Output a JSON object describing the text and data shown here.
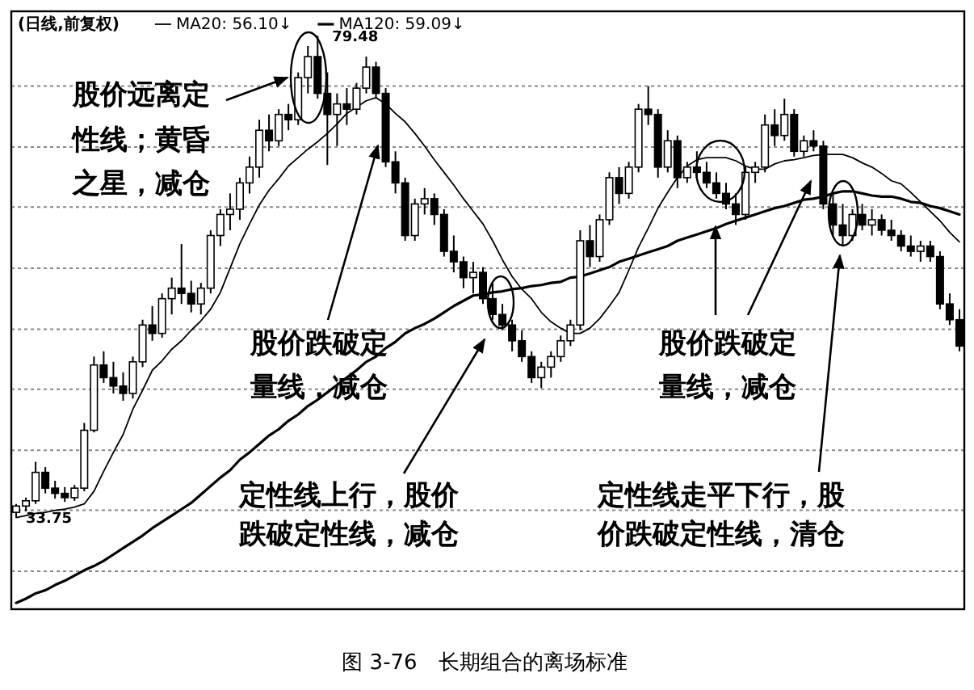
{
  "chart_data": {
    "type": "candlestick",
    "title": "图 3-76　长期组合的离场标准",
    "subtitle": "(日线,前复权)",
    "categories": [
      null,
      null,
      null,
      null,
      null,
      null,
      null,
      null,
      null,
      null,
      null,
      null,
      null,
      null,
      null,
      null,
      null,
      null,
      null,
      null,
      null,
      null,
      null,
      null,
      null,
      null,
      null,
      null,
      null,
      null,
      null,
      null,
      null,
      null,
      null,
      null,
      null,
      null,
      null,
      null,
      null,
      null,
      null,
      null,
      null,
      null,
      null,
      null,
      null,
      null,
      null,
      null,
      null,
      null,
      null,
      null,
      null,
      null,
      null,
      null,
      null,
      null,
      null,
      null,
      null,
      null,
      null,
      null,
      null,
      null,
      null,
      null,
      null,
      null,
      null,
      null,
      null,
      null,
      null,
      null,
      null,
      null,
      null,
      null,
      null,
      null,
      null,
      null,
      null,
      null,
      null,
      null,
      null,
      null,
      null,
      null,
      null,
      null
    ],
    "ohlc": [
      [
        34.2,
        35.0,
        33.75,
        34.8
      ],
      [
        34.8,
        35.6,
        34.3,
        35.3
      ],
      [
        35.3,
        39.0,
        35.0,
        38.0
      ],
      [
        38.0,
        38.5,
        36.0,
        36.5
      ],
      [
        36.5,
        37.2,
        35.5,
        36.0
      ],
      [
        36.0,
        36.6,
        35.2,
        35.6
      ],
      [
        35.6,
        36.8,
        35.3,
        36.5
      ],
      [
        36.5,
        42.7,
        36.2,
        42.0
      ],
      [
        42.0,
        49.0,
        41.8,
        48.2
      ],
      [
        48.2,
        49.5,
        46.5,
        47.0
      ],
      [
        47.0,
        48.5,
        45.5,
        46.2
      ],
      [
        46.2,
        47.5,
        44.8,
        45.5
      ],
      [
        45.5,
        49.0,
        45.0,
        48.5
      ],
      [
        48.5,
        52.5,
        48.0,
        52.0
      ],
      [
        52.0,
        53.8,
        50.5,
        51.2
      ],
      [
        51.2,
        55.0,
        50.8,
        54.5
      ],
      [
        54.5,
        56.5,
        53.0,
        55.5
      ],
      [
        55.5,
        59.7,
        54.0,
        55.0
      ],
      [
        55.0,
        56.2,
        53.2,
        54.0
      ],
      [
        54.0,
        56.0,
        53.0,
        55.5
      ],
      [
        55.5,
        61.0,
        55.0,
        60.5
      ],
      [
        60.5,
        63.0,
        59.5,
        62.5
      ],
      [
        62.5,
        64.5,
        61.0,
        63.0
      ],
      [
        63.0,
        66.0,
        62.0,
        65.5
      ],
      [
        65.5,
        68.0,
        64.5,
        67.0
      ],
      [
        67.0,
        71.5,
        66.0,
        70.5
      ],
      [
        70.5,
        72.0,
        68.5,
        69.5
      ],
      [
        69.5,
        72.5,
        69.0,
        72.0
      ],
      [
        72.0,
        73.0,
        70.5,
        71.5
      ],
      [
        71.5,
        76.0,
        71.0,
        75.5
      ],
      [
        75.5,
        78.5,
        74.0,
        77.5
      ],
      [
        77.5,
        79.48,
        73.5,
        74.0
      ],
      [
        74.0,
        76.0,
        67.2,
        72.0
      ],
      [
        72.0,
        74.0,
        69.0,
        73.0
      ],
      [
        73.0,
        74.5,
        71.0,
        72.5
      ],
      [
        72.5,
        75.0,
        72.0,
        74.5
      ],
      [
        74.5,
        77.5,
        74.0,
        76.5
      ],
      [
        76.5,
        77.0,
        73.5,
        74.0
      ],
      [
        74.0,
        74.5,
        67.0,
        67.5
      ],
      [
        67.5,
        68.5,
        64.5,
        65.5
      ],
      [
        65.5,
        66.0,
        60.0,
        60.5
      ],
      [
        60.5,
        64.0,
        60.0,
        63.5
      ],
      [
        63.5,
        65.0,
        62.5,
        64.0
      ],
      [
        64.0,
        64.5,
        61.5,
        62.5
      ],
      [
        62.5,
        63.0,
        58.5,
        59.0
      ],
      [
        59.0,
        60.5,
        57.0,
        58.0
      ],
      [
        58.0,
        58.5,
        55.5,
        56.5
      ],
      [
        56.5,
        58.0,
        55.0,
        57.0
      ],
      [
        57.0,
        57.5,
        54.0,
        54.5
      ],
      [
        54.5,
        56.0,
        52.5,
        53.0
      ],
      [
        53.0,
        54.0,
        51.5,
        52.0
      ],
      [
        52.0,
        52.5,
        49.5,
        50.5
      ],
      [
        50.5,
        51.5,
        48.5,
        49.0
      ],
      [
        49.0,
        49.5,
        46.5,
        47.0
      ],
      [
        47.0,
        48.5,
        46.0,
        48.0
      ],
      [
        48.0,
        49.5,
        47.0,
        49.0
      ],
      [
        49.0,
        51.0,
        48.5,
        50.5
      ],
      [
        50.5,
        52.5,
        50.0,
        52.0
      ],
      [
        52.0,
        61.0,
        51.5,
        60.0
      ],
      [
        60.0,
        61.5,
        57.5,
        58.5
      ],
      [
        58.5,
        62.5,
        58.0,
        62.0
      ],
      [
        62.0,
        66.5,
        61.5,
        66.0
      ],
      [
        66.0,
        67.0,
        63.5,
        64.5
      ],
      [
        64.5,
        67.5,
        64.0,
        67.0
      ],
      [
        67.0,
        73.0,
        66.5,
        72.5
      ],
      [
        72.5,
        74.7,
        71.0,
        72.0
      ],
      [
        72.0,
        72.5,
        66.0,
        67.0
      ],
      [
        67.0,
        70.5,
        66.5,
        69.5
      ],
      [
        69.5,
        70.0,
        65.0,
        66.0
      ],
      [
        66.0,
        67.5,
        65.5,
        67.0
      ],
      [
        67.0,
        68.5,
        66.0,
        66.5
      ],
      [
        66.5,
        67.5,
        65.0,
        65.5
      ],
      [
        65.5,
        66.5,
        64.0,
        64.5
      ],
      [
        64.5,
        65.5,
        63.0,
        63.5
      ],
      [
        63.5,
        64.5,
        61.5,
        62.5
      ],
      [
        62.5,
        67.0,
        62.0,
        66.5
      ],
      [
        66.5,
        67.5,
        65.5,
        67.0
      ],
      [
        67.0,
        72.0,
        66.5,
        71.0
      ],
      [
        71.0,
        72.5,
        69.0,
        70.0
      ],
      [
        70.0,
        73.5,
        69.5,
        72.0
      ],
      [
        72.0,
        72.5,
        68.0,
        68.5
      ],
      [
        68.5,
        70.0,
        68.0,
        69.5
      ],
      [
        69.5,
        70.5,
        68.5,
        69.0
      ],
      [
        69.0,
        69.5,
        63.0,
        63.5
      ],
      [
        63.5,
        64.5,
        60.5,
        61.5
      ],
      [
        61.5,
        63.5,
        59.5,
        60.5
      ],
      [
        60.5,
        63.0,
        60.0,
        62.5
      ],
      [
        62.5,
        63.5,
        61.0,
        61.5
      ],
      [
        61.5,
        63.0,
        60.5,
        62.0
      ],
      [
        62.0,
        62.5,
        60.5,
        61.0
      ],
      [
        61.0,
        62.0,
        60.0,
        60.5
      ],
      [
        60.5,
        61.0,
        59.0,
        59.5
      ],
      [
        59.5,
        60.5,
        58.5,
        59.0
      ],
      [
        59.0,
        60.0,
        58.0,
        59.5
      ],
      [
        59.5,
        60.0,
        58.0,
        58.5
      ],
      [
        58.5,
        59.0,
        53.5,
        54.0
      ],
      [
        54.0,
        55.0,
        52.0,
        52.5
      ],
      [
        52.5,
        53.5,
        49.5,
        50.0
      ]
    ],
    "series": [
      {
        "name": "MA20: 56.10↓",
        "type": "line",
        "color": "#000000",
        "values": [
          33.7,
          33.9,
          34.1,
          34.2,
          34.4,
          34.5,
          34.7,
          35.0,
          36.2,
          38.1,
          39.9,
          41.6,
          44.0,
          45.8,
          47.7,
          48.6,
          49.7,
          50.5,
          51.5,
          52.4,
          53.5,
          55.1,
          57.4,
          59.7,
          61.6,
          63.4,
          64.8,
          65.9,
          67.1,
          67.9,
          68.7,
          69.4,
          70.2,
          71.1,
          72.1,
          72.7,
          73.3,
          73.6,
          73.0,
          72.1,
          71.3,
          70.2,
          69.0,
          67.7,
          66.5,
          65.3,
          64.0,
          62.8,
          61.6,
          60.0,
          58.2,
          56.6,
          55.4,
          54.5,
          53.2,
          52.3,
          51.7,
          51.2,
          51.2,
          51.7,
          52.6,
          53.8,
          55.1,
          57.2,
          59.4,
          61.2,
          63.1,
          64.6,
          66.0,
          67.1,
          67.7,
          67.9,
          67.9,
          67.9,
          67.6,
          67.1,
          66.8,
          66.8,
          67.3,
          67.6,
          67.7,
          67.9,
          68.1,
          68.2,
          68.2,
          68.2,
          67.9,
          67.4,
          67.0,
          66.4,
          65.7,
          65.4,
          64.6,
          63.7,
          62.8,
          61.9,
          60.8,
          59.9
        ]
      },
      {
        "name": "MA120: 59.09↓",
        "type": "line",
        "color": "#000000",
        "values": [
          25.6,
          26.0,
          26.5,
          26.8,
          27.3,
          27.7,
          28.2,
          28.7,
          29.1,
          29.6,
          30.2,
          30.8,
          31.4,
          32.0,
          32.7,
          33.3,
          33.9,
          34.5,
          35.1,
          35.9,
          36.7,
          37.5,
          38.2,
          39.2,
          39.9,
          40.7,
          41.5,
          42.1,
          42.9,
          43.5,
          44.3,
          44.9,
          45.6,
          46.3,
          47.0,
          47.7,
          48.5,
          49.0,
          49.8,
          50.4,
          51.2,
          51.7,
          52.1,
          52.6,
          53.2,
          53.8,
          54.3,
          54.8,
          54.9,
          55.1,
          55.2,
          55.4,
          55.5,
          55.7,
          55.8,
          56.0,
          56.1,
          56.5,
          56.6,
          56.9,
          57.2,
          57.5,
          58.0,
          58.3,
          58.6,
          58.9,
          59.2,
          59.5,
          60.0,
          60.3,
          60.6,
          60.9,
          61.2,
          61.6,
          61.9,
          62.2,
          62.5,
          62.8,
          63.1,
          63.3,
          63.6,
          63.9,
          64.0,
          64.2,
          64.5,
          64.7,
          64.7,
          64.5,
          64.3,
          64.2,
          64.2,
          64.0,
          63.7,
          63.6,
          63.3,
          63.1,
          62.8,
          62.5
        ]
      }
    ],
    "ylim": [
      25.0,
      81.8
    ],
    "yticks": [
      {
        "value": 74.7,
        "label": null
      },
      {
        "value": 68.9,
        "label": null
      },
      {
        "value": 63.2,
        "label": null
      },
      {
        "value": 57.4,
        "label": null
      },
      {
        "value": 51.6,
        "label": null
      },
      {
        "value": 45.9,
        "label": null
      },
      {
        "value": 40.1,
        "label": null
      },
      {
        "value": 34.4,
        "label": null
      },
      {
        "value": 28.6,
        "label": null
      }
    ],
    "grid": "y",
    "legend": "top left",
    "annotations": [
      "79.48",
      {
        "text": "33.75",
        "y": 33.75
      },
      "股价远离定性线；黄昏之星，减仓",
      "股价跌破定量线，减仓",
      "定性线上行，股价跌破定性线，减仓",
      "股价跌破定量线，减仓",
      "定性线走平下行，股价跌破定性线，清仓"
    ]
  }
}
